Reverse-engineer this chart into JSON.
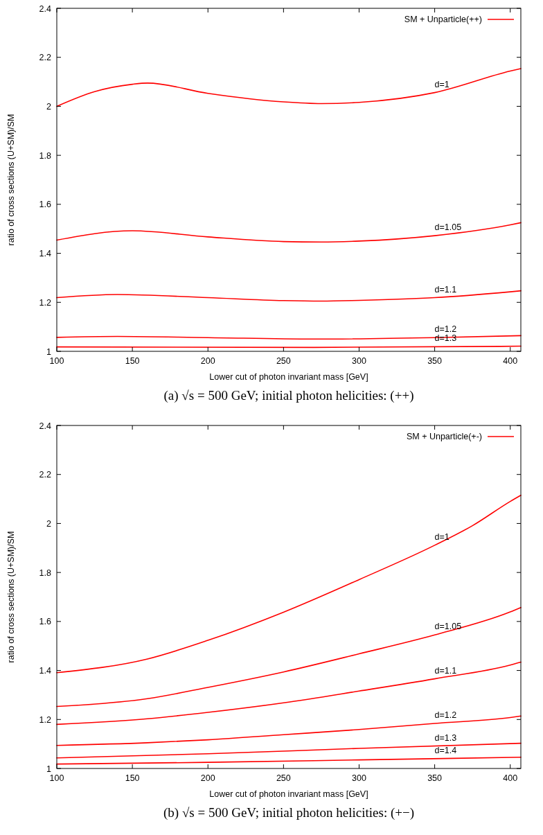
{
  "chart_data": [
    {
      "type": "line",
      "xlabel": "Lower cut of photon invariant mass [GeV]",
      "ylabel": "ratio of cross sections (U+SM)/SM",
      "xlim": [
        100,
        407
      ],
      "xticks": [
        100,
        150,
        200,
        250,
        300,
        350,
        400
      ],
      "ylim": [
        1,
        2.4
      ],
      "yticks": [
        1,
        1.2,
        1.4,
        1.6,
        1.8,
        2,
        2.2,
        2.4
      ],
      "grid": false,
      "legend": "top right",
      "marker": "none",
      "line_style": "solid",
      "series": [
        {
          "name": "SM + Unparticle(++)",
          "color": "#ff0000",
          "x": [
            100,
            125,
            150,
            160,
            200,
            250,
            275,
            300,
            350,
            400,
            407
          ],
          "values": [
            2.0,
            2.06,
            2.09,
            2.095,
            2.053,
            2.018,
            2.011,
            2.016,
            2.056,
            2.144,
            2.154
          ]
        },
        {
          "color": "#ff0000",
          "x": [
            100,
            150,
            200,
            250,
            275,
            300,
            350,
            400,
            407
          ],
          "values": [
            1.454,
            1.492,
            1.467,
            1.448,
            1.446,
            1.45,
            1.472,
            1.516,
            1.525
          ]
        },
        {
          "color": "#ff0000",
          "x": [
            100,
            140,
            200,
            250,
            275,
            300,
            350,
            400,
            407
          ],
          "values": [
            1.219,
            1.232,
            1.219,
            1.207,
            1.205,
            1.208,
            1.219,
            1.243,
            1.247
          ]
        },
        {
          "color": "#ff0000",
          "x": [
            100,
            140,
            200,
            270,
            350,
            407
          ],
          "values": [
            1.057,
            1.061,
            1.056,
            1.05,
            1.056,
            1.064
          ]
        },
        {
          "color": "#ff0000",
          "x": [
            100,
            270,
            407
          ],
          "values": [
            1.018,
            1.016,
            1.021
          ]
        }
      ],
      "annotations": [
        "d=1",
        "d=1.05",
        "d=1.1",
        "d=1.2",
        "d=1.3",
        "(a) √s = 500 GeV; initial photon helicities: (++)"
      ]
    },
    {
      "type": "line",
      "xlabel": "Lower cut of photon invariant mass [GeV]",
      "ylabel": "ratio of cross sections (U+SM)/SM",
      "xlim": [
        100,
        407
      ],
      "xticks": [
        100,
        150,
        200,
        250,
        300,
        350,
        400
      ],
      "ylim": [
        1,
        2.4
      ],
      "yticks": [
        1,
        1.2,
        1.4,
        1.6,
        1.8,
        2,
        2.2,
        2.4
      ],
      "grid": false,
      "legend": "top right",
      "marker": "none",
      "line_style": "solid",
      "series": [
        {
          "name": "SM + Unparticle(+-)",
          "color": "#ff0000",
          "x": [
            100,
            160,
            200,
            250,
            300,
            350,
            375,
            400,
            407
          ],
          "values": [
            1.391,
            1.447,
            1.523,
            1.638,
            1.771,
            1.911,
            1.991,
            2.09,
            2.115
          ]
        },
        {
          "color": "#ff0000",
          "x": [
            100,
            160,
            200,
            250,
            300,
            350,
            400,
            407
          ],
          "values": [
            1.253,
            1.285,
            1.331,
            1.394,
            1.468,
            1.545,
            1.639,
            1.657
          ]
        },
        {
          "color": "#ff0000",
          "x": [
            100,
            160,
            200,
            250,
            300,
            350,
            400,
            407
          ],
          "values": [
            1.18,
            1.203,
            1.229,
            1.268,
            1.316,
            1.366,
            1.422,
            1.434
          ]
        },
        {
          "color": "#ff0000",
          "x": [
            100,
            160,
            200,
            250,
            300,
            350,
            400,
            407
          ],
          "values": [
            1.094,
            1.105,
            1.117,
            1.138,
            1.159,
            1.184,
            1.208,
            1.214
          ]
        },
        {
          "color": "#ff0000",
          "x": [
            100,
            200,
            300,
            407
          ],
          "values": [
            1.043,
            1.06,
            1.082,
            1.103
          ]
        },
        {
          "color": "#ff0000",
          "x": [
            100,
            200,
            300,
            407
          ],
          "values": [
            1.018,
            1.025,
            1.035,
            1.046
          ]
        }
      ],
      "annotations": [
        "d=1",
        "d=1.05",
        "d=1.1",
        "d=1.2",
        "d=1.3",
        "d=1.4",
        "(b) √s = 500 GeV; initial photon helicities: (+−)"
      ]
    }
  ]
}
